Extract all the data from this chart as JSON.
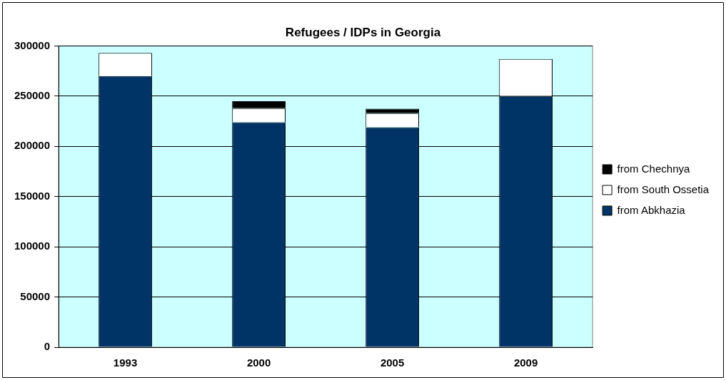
{
  "chart_data": {
    "type": "bar",
    "title": "Refugees / IDPs in Georgia",
    "categories": [
      "1993",
      "2000",
      "2005",
      "2009"
    ],
    "stacked": true,
    "series": [
      {
        "name": "from Abkhazia",
        "color": "#003366",
        "values": [
          270000,
          224000,
          219000,
          250000
        ]
      },
      {
        "name": "from South Ossetia",
        "color": "#ffffff",
        "values": [
          23000,
          14000,
          14000,
          37000
        ]
      },
      {
        "name": "from Chechnya",
        "color": "#000000",
        "values": [
          null,
          7000,
          4500,
          null
        ]
      }
    ],
    "ylim": [
      0,
      300000
    ],
    "yticks": [
      0,
      50000,
      100000,
      150000,
      200000,
      250000,
      300000
    ],
    "grid": "y",
    "legend": "right"
  }
}
